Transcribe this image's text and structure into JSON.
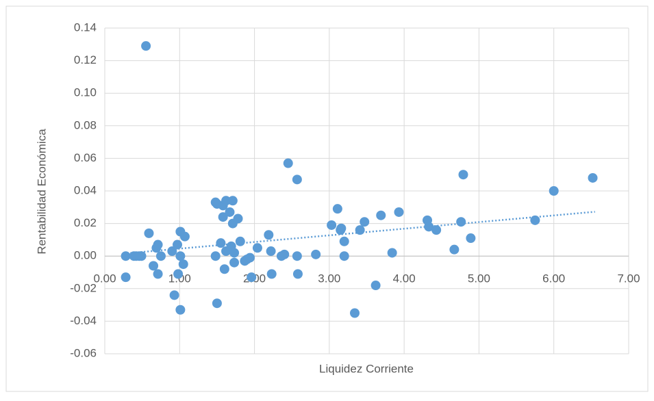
{
  "chart_data": {
    "type": "scatter",
    "xlabel": "Liquidez Corriente",
    "ylabel": "Rentabilidad Económica",
    "color": "#5b9bd5",
    "grid": true,
    "xlim": [
      0,
      7
    ],
    "xticks": [
      {
        "value": 0,
        "label": "0.00"
      },
      {
        "value": 1,
        "label": "1.00"
      },
      {
        "value": 2,
        "label": "2.00"
      },
      {
        "value": 3,
        "label": "3.00"
      },
      {
        "value": 4,
        "label": "4.00"
      },
      {
        "value": 5,
        "label": "5.00"
      },
      {
        "value": 6,
        "label": "6.00"
      },
      {
        "value": 7,
        "label": "7.00"
      }
    ],
    "ylim": [
      -0.06,
      0.14
    ],
    "yticks": [
      {
        "value": -0.06,
        "label": "-0.06"
      },
      {
        "value": -0.04,
        "label": "-0.04"
      },
      {
        "value": -0.02,
        "label": "-0.02"
      },
      {
        "value": 0,
        "label": "0.00"
      },
      {
        "value": 0.02,
        "label": "0.02"
      },
      {
        "value": 0.04,
        "label": "0.04"
      },
      {
        "value": 0.06,
        "label": "0.06"
      },
      {
        "value": 0.08,
        "label": "0.08"
      },
      {
        "value": 0.1,
        "label": "0.10"
      },
      {
        "value": 0.12,
        "label": "0.12"
      },
      {
        "value": 0.14,
        "label": "0.14"
      }
    ],
    "x": [
      0.28,
      0.28,
      0.55,
      0.39,
      0.42,
      0.46,
      0.49,
      0.59,
      0.65,
      0.69,
      0.71,
      0.71,
      0.75,
      0.9,
      0.93,
      0.97,
      0.98,
      1.01,
      1.01,
      1.01,
      1.05,
      1.07,
      1.48,
      1.5,
      1.48,
      1.5,
      1.55,
      1.58,
      1.58,
      1.6,
      1.62,
      1.62,
      1.67,
      1.69,
      1.71,
      1.71,
      1.73,
      1.73,
      1.78,
      1.81,
      1.87,
      1.9,
      1.94,
      1.96,
      2.04,
      2.19,
      2.22,
      2.23,
      2.36,
      2.4,
      2.45,
      2.57,
      2.57,
      2.58,
      2.82,
      3.03,
      3.11,
      3.15,
      3.16,
      3.2,
      3.2,
      3.34,
      3.41,
      3.47,
      3.62,
      3.69,
      3.84,
      3.93,
      4.31,
      4.33,
      4.43,
      4.67,
      4.76,
      4.79,
      4.89,
      5.75,
      6.0,
      6.52
    ],
    "y": [
      0.0,
      -0.013,
      0.129,
      0.0,
      0.0,
      0.0,
      0.0,
      0.014,
      -0.006,
      0.005,
      0.007,
      -0.011,
      0.0,
      0.003,
      -0.024,
      0.007,
      -0.011,
      0.0,
      0.015,
      -0.033,
      -0.005,
      0.012,
      0.033,
      0.032,
      0.0,
      -0.029,
      0.008,
      0.031,
      0.024,
      -0.008,
      0.034,
      0.003,
      0.027,
      0.006,
      0.034,
      0.02,
      0.002,
      -0.004,
      0.023,
      0.009,
      -0.003,
      -0.002,
      -0.001,
      -0.013,
      0.005,
      0.013,
      0.003,
      -0.011,
      0.0,
      0.001,
      0.057,
      0.047,
      0.0,
      -0.011,
      0.001,
      0.019,
      0.029,
      0.016,
      0.017,
      0.009,
      0.0,
      -0.035,
      0.016,
      0.021,
      -0.018,
      0.025,
      0.002,
      0.027,
      0.022,
      0.018,
      0.016,
      0.004,
      0.021,
      0.05,
      0.011,
      0.022,
      0.04,
      0.048
    ],
    "trendline": {
      "x": [
        0.25,
        6.55
      ],
      "y": [
        0.0015,
        0.0272
      ]
    }
  }
}
